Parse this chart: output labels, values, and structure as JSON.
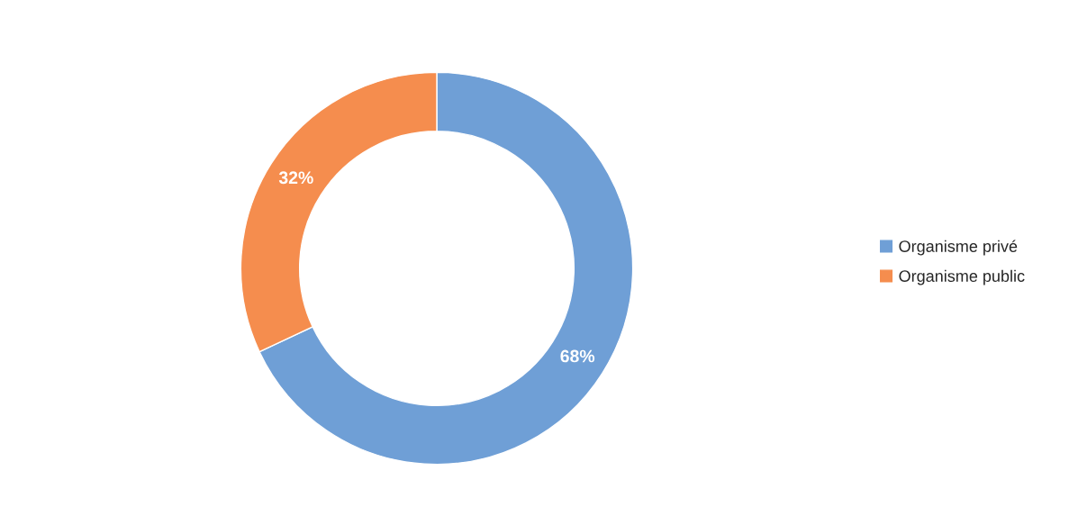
{
  "chart_data": {
    "type": "donut",
    "categories": [
      "Organisme privé",
      "Organisme public"
    ],
    "values": [
      68,
      32
    ],
    "colors": [
      "#6f9fd6",
      "#f58d4e"
    ],
    "value_labels": [
      "68%",
      "32%"
    ],
    "legend": "right"
  }
}
